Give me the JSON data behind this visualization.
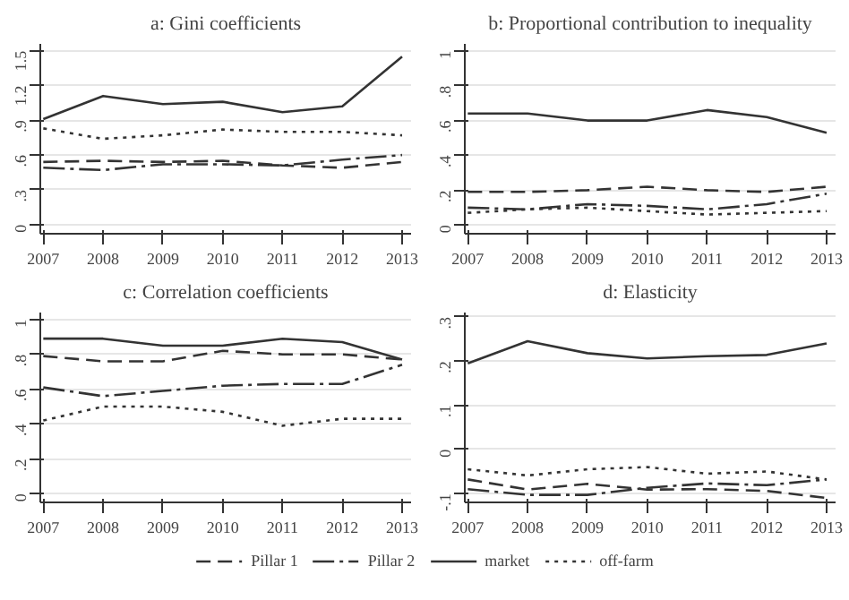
{
  "chart_data": [
    {
      "type": "line",
      "title": "a: Gini coefficients",
      "x": [
        2007,
        2008,
        2009,
        2010,
        2011,
        2012,
        2013
      ],
      "xlim": [
        2006.95,
        2013.15
      ],
      "xticks": [
        2007,
        2008,
        2009,
        2010,
        2011,
        2012,
        2013
      ],
      "ylim": [
        -0.08,
        1.56
      ],
      "yticks": [
        0,
        {
          "value": 0.3,
          "label": ".3"
        },
        {
          "value": 0.6,
          "label": ".6"
        },
        {
          "value": 0.9,
          "label": ".9"
        },
        {
          "value": 1.2,
          "label": "1.2"
        },
        {
          "value": 1.5,
          "label": "1.5"
        }
      ],
      "grid": "y",
      "marker": "none",
      "series": [
        {
          "color": "#333333",
          "line_style": "dashed",
          "values": [
            0.54,
            0.55,
            0.54,
            0.55,
            0.51,
            0.49,
            0.54
          ]
        },
        {
          "color": "#333333",
          "line_style": "dashdot",
          "values": [
            0.49,
            0.47,
            0.52,
            0.52,
            0.51,
            0.56,
            0.6
          ]
        },
        {
          "color": "#333333",
          "line_style": "solid",
          "values": [
            0.91,
            1.11,
            1.04,
            1.06,
            0.97,
            1.02,
            1.45
          ]
        },
        {
          "color": "#333333",
          "line_style": "dotted",
          "values": [
            0.83,
            0.74,
            0.77,
            0.82,
            0.8,
            0.8,
            0.77
          ]
        }
      ]
    },
    {
      "type": "line",
      "title": "b: Proportional contribution to inequality",
      "x": [
        2007,
        2008,
        2009,
        2010,
        2011,
        2012,
        2013
      ],
      "xlim": [
        2006.95,
        2013.15
      ],
      "xticks": [
        2007,
        2008,
        2009,
        2010,
        2011,
        2012,
        2013
      ],
      "ylim": [
        -0.05,
        1.04
      ],
      "yticks": [
        0,
        {
          "value": 0.2,
          "label": ".2"
        },
        {
          "value": 0.4,
          "label": ".4"
        },
        {
          "value": 0.6,
          "label": ".6"
        },
        {
          "value": 0.8,
          "label": ".8"
        },
        1
      ],
      "grid": "y",
      "marker": "none",
      "series": [
        {
          "color": "#333333",
          "line_style": "dashed",
          "values": [
            0.19,
            0.19,
            0.2,
            0.22,
            0.2,
            0.19,
            0.22
          ]
        },
        {
          "color": "#333333",
          "line_style": "dashdot",
          "values": [
            0.1,
            0.09,
            0.12,
            0.11,
            0.09,
            0.12,
            0.18
          ]
        },
        {
          "color": "#333333",
          "line_style": "solid",
          "values": [
            0.64,
            0.64,
            0.6,
            0.6,
            0.66,
            0.62,
            0.53
          ]
        },
        {
          "color": "#333333",
          "line_style": "dotted",
          "values": [
            0.07,
            0.09,
            0.1,
            0.08,
            0.06,
            0.07,
            0.08
          ]
        }
      ]
    },
    {
      "type": "line",
      "title": "c: Correlation coefficients",
      "x": [
        2007,
        2008,
        2009,
        2010,
        2011,
        2012,
        2013
      ],
      "xlim": [
        2006.95,
        2013.15
      ],
      "xticks": [
        2007,
        2008,
        2009,
        2010,
        2011,
        2012,
        2013
      ],
      "ylim": [
        -0.05,
        1.04
      ],
      "yticks": [
        0,
        {
          "value": 0.2,
          "label": ".2"
        },
        {
          "value": 0.4,
          "label": ".4"
        },
        {
          "value": 0.6,
          "label": ".6"
        },
        {
          "value": 0.8,
          "label": ".8"
        },
        1
      ],
      "grid": "y",
      "marker": "none",
      "series": [
        {
          "color": "#333333",
          "line_style": "dashed",
          "values": [
            0.79,
            0.76,
            0.76,
            0.82,
            0.8,
            0.8,
            0.77
          ]
        },
        {
          "color": "#333333",
          "line_style": "dashdot",
          "values": [
            0.61,
            0.56,
            0.59,
            0.62,
            0.63,
            0.63,
            0.74
          ]
        },
        {
          "color": "#333333",
          "line_style": "solid",
          "values": [
            0.89,
            0.89,
            0.85,
            0.85,
            0.89,
            0.87,
            0.77
          ]
        },
        {
          "color": "#333333",
          "line_style": "dotted",
          "values": [
            0.42,
            0.5,
            0.5,
            0.47,
            0.39,
            0.43,
            0.43
          ]
        }
      ]
    },
    {
      "type": "line",
      "title": "d: Elasticity",
      "x": [
        2007,
        2008,
        2009,
        2010,
        2011,
        2012,
        2013
      ],
      "xlim": [
        2006.95,
        2013.15
      ],
      "xticks": [
        2007,
        2008,
        2009,
        2010,
        2011,
        2012,
        2013
      ],
      "ylim": [
        -0.12,
        0.31
      ],
      "yticks": [
        {
          "value": -0.1,
          "label": "-.1"
        },
        0,
        {
          "value": 0.1,
          "label": ".1"
        },
        {
          "value": 0.2,
          "label": ".2"
        },
        {
          "value": 0.3,
          "label": ".3"
        }
      ],
      "grid": "y",
      "marker": "none",
      "legend": "bottom",
      "series": [
        {
          "name": "Pillar 1",
          "color": "#333333",
          "line_style": "dashed",
          "values": [
            -0.068,
            -0.091,
            -0.078,
            -0.091,
            -0.09,
            -0.094,
            -0.11
          ]
        },
        {
          "name": "Pillar 2",
          "color": "#333333",
          "line_style": "dashdot",
          "values": [
            -0.09,
            -0.103,
            -0.103,
            -0.087,
            -0.077,
            -0.081,
            -0.068
          ]
        },
        {
          "name": "market",
          "color": "#333333",
          "line_style": "solid",
          "values": [
            0.195,
            0.245,
            0.218,
            0.206,
            0.211,
            0.214,
            0.24
          ]
        },
        {
          "name": "off-farm",
          "color": "#333333",
          "line_style": "dotted",
          "values": [
            -0.045,
            -0.059,
            -0.045,
            -0.04,
            -0.055,
            -0.05,
            -0.068
          ]
        }
      ]
    }
  ]
}
